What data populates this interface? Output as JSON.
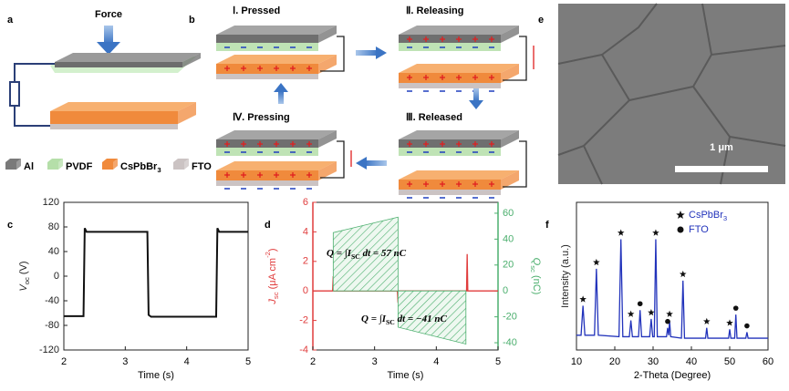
{
  "panel_labels": [
    "a",
    "b",
    "c",
    "d",
    "e",
    "f"
  ],
  "diagram_a": {
    "force": "Force",
    "legend": [
      {
        "parts": [
          {
            "text": "Al"
          }
        ],
        "color": "#7a7a7a"
      },
      {
        "parts": [
          {
            "text": "PVDF"
          }
        ],
        "color": "#b5dfa9"
      },
      {
        "parts": [
          {
            "text": "CsPbBr"
          },
          {
            "text": "3",
            "style": "sub"
          }
        ],
        "color": "#f08a3c"
      },
      {
        "parts": [
          {
            "text": "FTO"
          }
        ],
        "color": "#cbc3c3"
      }
    ]
  },
  "diagram_b": {
    "stages": [
      "Ⅰ. Pressed",
      "Ⅱ. Releasing",
      "Ⅲ. Released",
      "Ⅳ. Pressing"
    ]
  },
  "image_e": {
    "scale_bar": "1 μm"
  },
  "chart_data": [
    {
      "type": "line",
      "xlabel": "Time (s)",
      "ylabel": [
        {
          "text": "V",
          "style": "italic"
        },
        {
          "text": "oc",
          "style": "sub"
        },
        {
          "text": " (V)"
        }
      ],
      "xlim": [
        2,
        5
      ],
      "xticks": [
        2,
        3,
        4,
        5
      ],
      "ylim": [
        -120,
        120
      ],
      "yticks": [
        -120,
        -80,
        -40,
        0,
        40,
        80,
        120
      ],
      "series": [
        {
          "color": "#111111",
          "x": [
            2,
            2.32,
            2.34,
            2.37,
            3.36,
            3.38,
            3.42,
            4.48,
            4.5,
            4.53,
            5
          ],
          "values": [
            -65,
            -65,
            78,
            72,
            72,
            -63,
            -66,
            -66,
            78,
            72,
            72
          ]
        }
      ]
    },
    {
      "type": "line",
      "xlabel": "Time (s)",
      "ylabel": [
        {
          "text": "J",
          "style": "italic"
        },
        {
          "text": "sc",
          "style": "sub"
        },
        {
          "text": " (μA cm"
        },
        {
          "text": "-2",
          "style": "sup"
        },
        {
          "text": ")"
        }
      ],
      "y2label": [
        {
          "text": "Q",
          "style": "italic"
        },
        {
          "text": "sc",
          "style": "sub"
        },
        {
          "text": " (nC)"
        }
      ],
      "ycolor": "#e03c3c",
      "y2color": "#4caf6e",
      "xlim": [
        2,
        5
      ],
      "xticks": [
        2,
        3,
        4,
        5
      ],
      "ylim": [
        -4,
        6
      ],
      "yticks": [
        -4,
        -2,
        0,
        2,
        4,
        6
      ],
      "y2lim": [
        -45.6,
        68.4
      ],
      "y2ticks": [
        -40,
        -20,
        0,
        20,
        40,
        60
      ],
      "series": [
        {
          "color": "#e03c3c",
          "x": [
            2,
            2.32,
            2.33,
            2.34,
            3.37,
            3.38,
            3.39,
            4.49,
            4.5,
            4.51,
            5
          ],
          "values": [
            0,
            0,
            1,
            0,
            0,
            -0.8,
            0,
            0,
            2.5,
            0,
            0
          ]
        },
        {
          "axis": "y2",
          "color": "#4caf6e",
          "fill": "hatch",
          "x": [
            2.33,
            3.38
          ],
          "values": [
            45,
            57
          ]
        },
        {
          "axis": "y2",
          "color": "#4caf6e",
          "fill": "hatch",
          "x": [
            3.38,
            4.48
          ],
          "values": [
            -28,
            -41
          ]
        }
      ],
      "annotations": [
        [
          {
            "text": "Q = ∫",
            "style": "italic"
          },
          {
            "text": "I",
            "style": "italic"
          },
          {
            "text": "SC",
            "style": "sub"
          },
          {
            "text": " dt = 57 nC",
            "style": "italic"
          }
        ],
        [
          {
            "text": "Q = ∫",
            "style": "italic"
          },
          {
            "text": "I",
            "style": "italic"
          },
          {
            "text": "SC",
            "style": "sub"
          },
          {
            "text": " dt = −41 nC",
            "style": "italic"
          }
        ]
      ]
    },
    {
      "type": "line",
      "xlabel": "2-Theta (Degree)",
      "ylabel": [
        {
          "text": "Intensity (a.u.)"
        }
      ],
      "xlim": [
        10,
        60
      ],
      "xticks": [
        10,
        20,
        30,
        40,
        50,
        60
      ],
      "ylim": [
        0,
        100
      ],
      "series": [
        {
          "color": "#2233bb",
          "x": [
            10,
            11.2,
            11.7,
            12.2,
            14.7,
            15.2,
            15.7,
            21.1,
            21.6,
            22.1,
            23.8,
            24.2,
            24.6,
            26.2,
            26.6,
            27.0,
            29.1,
            29.5,
            29.9,
            30.3,
            30.7,
            31.1,
            33.5,
            33.8,
            34.1,
            34.3,
            34.6,
            37.4,
            37.8,
            38.2,
            43.7,
            44,
            44.3,
            49.7,
            50,
            50.3,
            51.3,
            51.6,
            51.9,
            54.2,
            54.5,
            54.8,
            60
          ],
          "values": [
            10,
            10,
            30,
            10,
            10,
            55,
            10,
            9,
            75,
            9,
            9,
            20,
            9,
            9,
            27,
            9,
            9,
            21,
            9,
            9,
            75,
            9,
            9,
            15,
            10,
            20,
            9,
            8,
            47,
            8,
            8,
            15,
            8,
            8,
            14,
            8,
            8,
            24,
            8,
            8,
            12,
            8,
            8
          ]
        }
      ],
      "markers": [
        {
          "name": [
            {
              "text": "CsPbBr"
            },
            {
              "text": "3",
              "style": "sub"
            }
          ],
          "symbol": "star",
          "color": "#111111",
          "x": [
            11.7,
            15.2,
            21.6,
            24.2,
            29.5,
            30.7,
            34.3,
            37.8,
            44,
            50
          ]
        },
        {
          "name": [
            {
              "text": "FTO"
            }
          ],
          "symbol": "dot",
          "color": "#111111",
          "x": [
            26.6,
            33.8,
            51.6,
            54.5
          ]
        }
      ],
      "legend": "upper right",
      "legend_color": "#2233bb"
    }
  ]
}
